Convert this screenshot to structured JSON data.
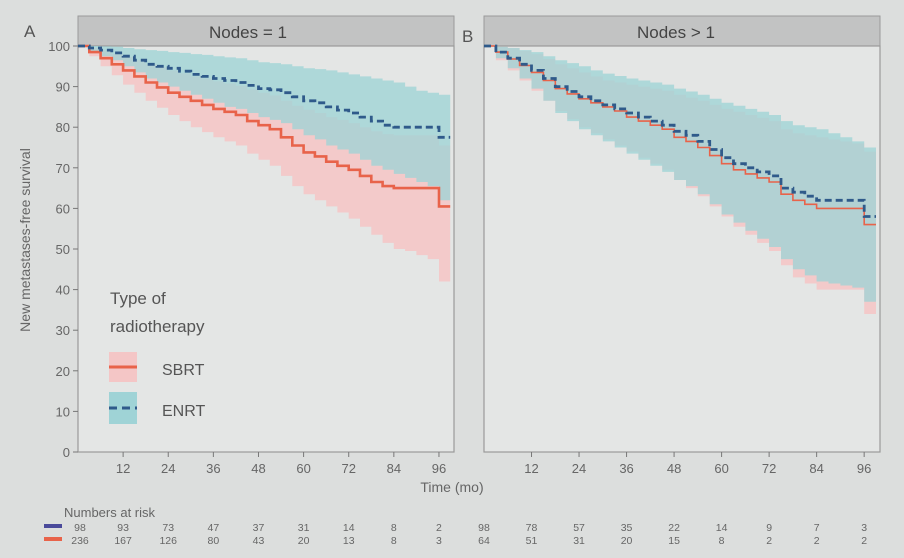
{
  "ylabel": "New metastases-free survival",
  "xlabel": "Time (mo)",
  "legend": {
    "title_line1": "Type of",
    "title_line2": "radiotherapy",
    "items": [
      {
        "label": "SBRT",
        "color": "#e8634a",
        "band": "#f4c6c6",
        "dash": false
      },
      {
        "label": "ENRT",
        "color": "#2f5a8a",
        "band": "#9fd3d6",
        "dash": true
      }
    ]
  },
  "risk": {
    "title": "Numbers at risk",
    "colors": [
      "#4a4a9a",
      "#e8634a"
    ]
  },
  "chart_data": [
    {
      "type": "line",
      "panel_label": "A",
      "title": "Nodes = 1",
      "xlabel": "Time (mo)",
      "ylabel": "New metastases-free survival",
      "xlim": [
        0,
        100
      ],
      "ylim": [
        0,
        100
      ],
      "xticks": [
        12,
        24,
        36,
        48,
        60,
        72,
        84,
        96
      ],
      "yticks": [
        0,
        10,
        20,
        30,
        40,
        50,
        60,
        70,
        80,
        90,
        100
      ],
      "series": [
        {
          "name": "SBRT",
          "x": [
            0,
            3,
            6,
            9,
            12,
            15,
            18,
            21,
            24,
            27,
            30,
            33,
            36,
            39,
            42,
            45,
            48,
            51,
            54,
            57,
            60,
            63,
            66,
            69,
            72,
            75,
            78,
            81,
            84,
            87,
            90,
            93,
            96,
            99
          ],
          "y": [
            100,
            98.5,
            97,
            95.5,
            94,
            92.5,
            91,
            89.8,
            88.5,
            87.5,
            86.5,
            85.5,
            84.5,
            83.8,
            83,
            81.5,
            80.5,
            79.5,
            77.5,
            75.5,
            73.8,
            72.8,
            71.5,
            70.5,
            69.5,
            68,
            66.5,
            65.5,
            65,
            65,
            65,
            65,
            60.5,
            60.5
          ],
          "ci_upper": [
            100,
            99.5,
            98.8,
            98,
            97.3,
            96.5,
            95.5,
            94.8,
            94,
            93.3,
            92.5,
            92,
            91.3,
            90.8,
            90.2,
            89.3,
            88.5,
            87.8,
            86.5,
            85.3,
            84.3,
            83.5,
            82.5,
            81.8,
            81,
            80,
            79,
            78.3,
            78,
            78,
            78,
            78,
            75.5,
            75.5
          ],
          "ci_lower": [
            100,
            97.5,
            95,
            92.8,
            90.5,
            88.5,
            86.5,
            84.8,
            83,
            81.5,
            80,
            78.8,
            77.5,
            76.5,
            75.5,
            73.5,
            72,
            70.5,
            68,
            65.5,
            63.5,
            62,
            60.5,
            59,
            57.5,
            55.5,
            53.5,
            51.5,
            50,
            49.5,
            48.5,
            47.5,
            42,
            41.5
          ]
        },
        {
          "name": "ENRT",
          "x": [
            0,
            3,
            6,
            9,
            12,
            15,
            18,
            21,
            24,
            27,
            30,
            33,
            36,
            39,
            42,
            45,
            48,
            51,
            54,
            57,
            60,
            63,
            66,
            69,
            72,
            75,
            78,
            81,
            84,
            87,
            90,
            93,
            96,
            99
          ],
          "y": [
            100,
            99.5,
            99,
            98.3,
            97.5,
            96.5,
            95.5,
            95,
            94.5,
            93.8,
            93,
            92.5,
            92,
            91.5,
            91,
            90.3,
            89.5,
            89.2,
            88.5,
            87.5,
            86.5,
            86,
            85,
            84.2,
            83.5,
            82.5,
            81.5,
            80.5,
            80,
            80,
            80,
            80,
            77.5,
            77.5
          ],
          "ci_upper": [
            100,
            100,
            99.9,
            99.8,
            99.5,
            99.2,
            99,
            98.8,
            98.5,
            98.3,
            98,
            97.8,
            97.5,
            97.2,
            97,
            96.5,
            96,
            95.8,
            95.5,
            95,
            94.5,
            94.3,
            94,
            93.5,
            93,
            92.5,
            92,
            91.5,
            91,
            90,
            89,
            88.5,
            88,
            88
          ],
          "ci_lower": [
            100,
            98.5,
            97.5,
            96.5,
            95,
            93.5,
            92,
            91,
            90,
            89,
            88,
            87,
            86,
            85,
            84.5,
            83.5,
            82.5,
            81.8,
            81,
            79.5,
            78,
            77,
            75.5,
            74.5,
            73.5,
            72,
            70.5,
            69.5,
            68.5,
            67.5,
            66.5,
            65.5,
            62,
            61.5
          ]
        }
      ],
      "numbers_at_risk": {
        "ENRT": [
          "98",
          "93",
          "73",
          "47",
          "37",
          "31",
          "14",
          "8",
          "2"
        ],
        "SBRT": [
          "236",
          "167",
          "126",
          "80",
          "43",
          "20",
          "13",
          "8",
          "3"
        ]
      }
    },
    {
      "type": "line",
      "panel_label": "B",
      "title": "Nodes > 1",
      "xlabel": "Time (mo)",
      "ylabel": "New metastases-free survival",
      "xlim": [
        0,
        100
      ],
      "ylim": [
        0,
        100
      ],
      "xticks": [
        12,
        24,
        36,
        48,
        60,
        72,
        84,
        96
      ],
      "yticks": [
        0,
        10,
        20,
        30,
        40,
        50,
        60,
        70,
        80,
        90,
        100
      ],
      "series": [
        {
          "name": "SBRT",
          "x": [
            0,
            3,
            6,
            9,
            12,
            15,
            18,
            21,
            24,
            27,
            30,
            33,
            36,
            39,
            42,
            45,
            48,
            51,
            54,
            57,
            60,
            63,
            66,
            69,
            72,
            75,
            78,
            81,
            84,
            87,
            90,
            93,
            96,
            99
          ],
          "y": [
            100,
            98.5,
            96.8,
            95.2,
            93.5,
            91.5,
            89.5,
            88.2,
            87,
            86,
            85,
            84,
            82.5,
            81.5,
            80.5,
            79.5,
            77.5,
            76.5,
            75,
            73,
            71,
            69.5,
            68.5,
            67.5,
            66.5,
            63.5,
            62,
            61,
            60,
            60,
            60,
            60,
            56,
            56
          ],
          "ci_upper": [
            100,
            99.8,
            99.5,
            98.8,
            98,
            96.8,
            95.5,
            94.5,
            93.5,
            92.5,
            91.5,
            91,
            90.5,
            90,
            89.5,
            89,
            88,
            87.3,
            86.5,
            85.5,
            84.5,
            83.8,
            83,
            82.3,
            81.5,
            79.5,
            78.5,
            78,
            77.5,
            77,
            76.5,
            76,
            74,
            73.5
          ],
          "ci_lower": [
            100,
            96.5,
            94,
            91.5,
            89,
            86.5,
            84,
            82,
            80,
            78.5,
            77,
            75.5,
            74,
            72.5,
            71,
            69.5,
            67,
            65,
            63,
            60.5,
            58,
            55.5,
            53.5,
            51.5,
            49.5,
            46,
            43,
            41.5,
            40,
            40,
            40,
            40,
            34,
            32
          ]
        },
        {
          "name": "ENRT",
          "x": [
            0,
            3,
            6,
            9,
            12,
            15,
            18,
            21,
            24,
            27,
            30,
            33,
            36,
            39,
            42,
            45,
            48,
            51,
            54,
            57,
            60,
            63,
            66,
            69,
            72,
            75,
            78,
            81,
            84,
            87,
            90,
            93,
            96,
            99
          ],
          "y": [
            100,
            98.5,
            97,
            95.5,
            94,
            92,
            90,
            88.8,
            87.5,
            86.5,
            85.5,
            84.5,
            83.5,
            82.5,
            81.5,
            80.5,
            79,
            78,
            76.5,
            74.5,
            72.5,
            71,
            70,
            69,
            68,
            65,
            64,
            63,
            62,
            62,
            62,
            62,
            58,
            58
          ],
          "ci_upper": [
            100,
            99.8,
            99.5,
            99,
            98.5,
            97.5,
            96.5,
            95.8,
            95,
            94,
            93.2,
            92.6,
            92,
            91.5,
            91,
            90.5,
            89.5,
            88.8,
            88,
            87,
            86,
            85.3,
            84.5,
            83.8,
            83,
            81.5,
            80.5,
            80,
            79.5,
            78.5,
            77.5,
            76.5,
            75,
            74.5
          ],
          "ci_lower": [
            100,
            97,
            94.5,
            92,
            89.5,
            86.5,
            83.5,
            81.5,
            79.5,
            78,
            76.5,
            75,
            73.5,
            72,
            70.5,
            69,
            67,
            65.5,
            63.5,
            61,
            58.5,
            56.5,
            54.5,
            52.5,
            50.5,
            47.5,
            45,
            43.5,
            42,
            41.5,
            41,
            40.5,
            37,
            36
          ]
        }
      ],
      "numbers_at_risk": {
        "ENRT": [
          "98",
          "78",
          "57",
          "35",
          "22",
          "14",
          "9",
          "7",
          "3"
        ],
        "SBRT": [
          "64",
          "51",
          "31",
          "20",
          "15",
          "8",
          "2",
          "2",
          "2"
        ]
      }
    }
  ]
}
